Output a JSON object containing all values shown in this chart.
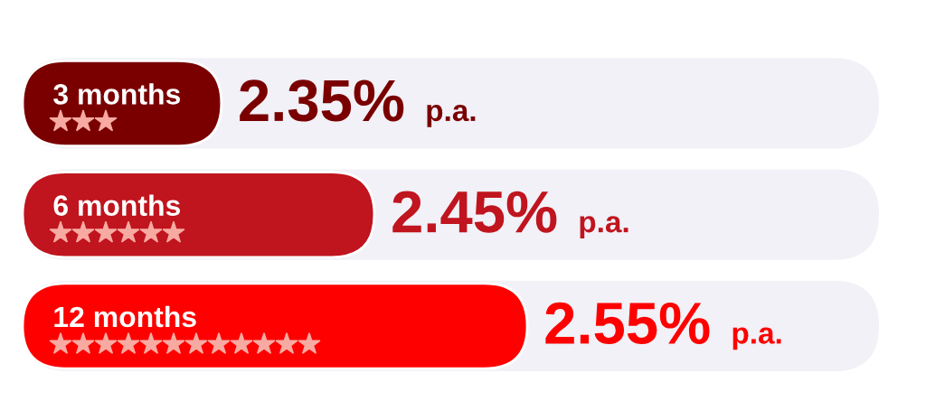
{
  "chart_data": {
    "type": "bar",
    "orientation": "horizontal",
    "categories": [
      "3 months",
      "6 months",
      "12 months"
    ],
    "values": [
      2.35,
      2.45,
      2.55
    ],
    "colors": [
      "#7a0000",
      "#c0141e",
      "#ff0000"
    ],
    "value_labels": [
      "2.35%",
      "2.45%",
      "2.55%"
    ],
    "xlim": [
      2.22,
      2.78
    ],
    "tick_labels": "y",
    "annotations": [
      "p.a.",
      "p.a.",
      "p.a."
    ]
  }
}
